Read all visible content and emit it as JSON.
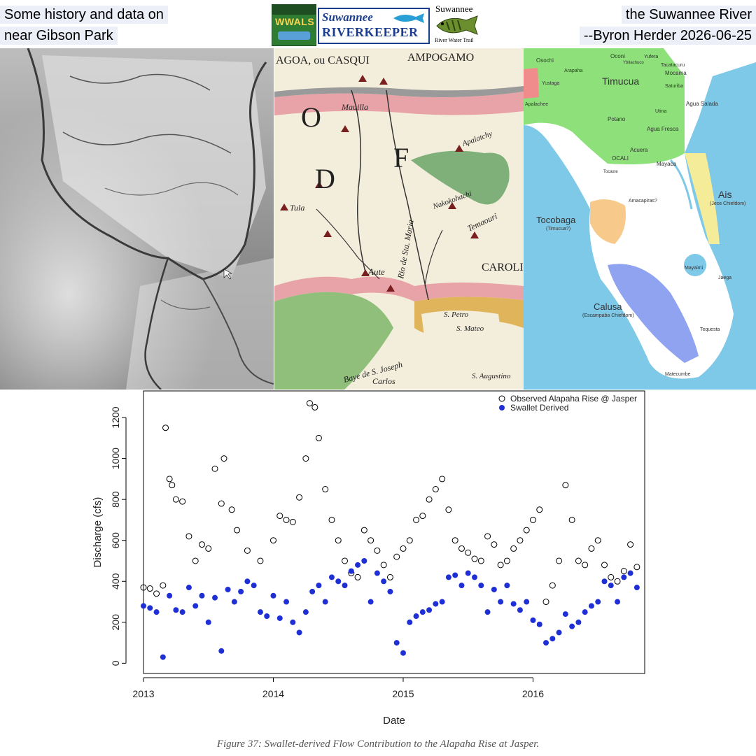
{
  "header": {
    "left_line1": "Some history and data on",
    "left_line2": "near Gibson Park",
    "right_line1": "the Suwannee River",
    "right_line2": "--Byron Herder 2026-06-25"
  },
  "logos": {
    "wwals": "WWALS",
    "riverkeeper_line1": "Suwannee",
    "riverkeeper_line2": "RIVERKEEPER",
    "trail_line1": "Suwannee",
    "trail_line2": "River Water Trail"
  },
  "old_map": {
    "labels": [
      "AGOA, ou CASQUI",
      "AMPOGAMO",
      "O",
      "F",
      "D",
      "Tula",
      "Aute",
      "Apalatchy",
      "Nakokohachi",
      "Temaouri",
      "CAROLIN",
      "Rio de Sta. Maria",
      "Baye de S. Joseph",
      "S. Petro",
      "S. Mateo",
      "S. Augustino",
      "Carlos",
      "Mauilla"
    ]
  },
  "tribes_map": {
    "labels": [
      "Osochi",
      "Oconi",
      "Yufera",
      "Timucua",
      "Tacatacuru",
      "Mocama",
      "Saturiba",
      "Agua Salada",
      "Utina",
      "Potano",
      "Agua Fresca",
      "Acuera",
      "OCALI",
      "Mayaca",
      "Ais",
      "(Jece Chiefdom)",
      "Tocobaga",
      "(Timucua?)",
      "Calusa",
      "(Escampaba Chiefdom)",
      "Mayaimi",
      "Jaega",
      "Tequesta",
      "Matecumbe",
      "Tocaste",
      "Amacapiras?",
      "Ybitachuco",
      "Yustaga",
      "Arapaha",
      "Apalachee"
    ]
  },
  "chart_data": {
    "type": "scatter",
    "title": "",
    "xlabel": "Date",
    "ylabel": "Discharge (cfs)",
    "x_ticks": [
      "2013",
      "2014",
      "2015",
      "2016"
    ],
    "y_ticks": [
      "0",
      "200",
      "400",
      "600",
      "800",
      "1000",
      "1200"
    ],
    "xlim": [
      2013.0,
      2016.86
    ],
    "ylim": [
      -50,
      1330
    ],
    "legend_position": "top-right",
    "caption": "Figure 37: Swallet-derived Flow Contribution to the Alapaha Rise at Jasper.",
    "series": [
      {
        "name": "Observed Alapaha Rise @ Jasper",
        "marker": "open-circle",
        "color": "#000000",
        "x": [
          2013.0,
          2013.05,
          2013.1,
          2013.15,
          2013.17,
          2013.2,
          2013.22,
          2013.25,
          2013.3,
          2013.35,
          2013.4,
          2013.45,
          2013.5,
          2013.55,
          2013.6,
          2013.62,
          2013.68,
          2013.72,
          2013.8,
          2013.9,
          2014.0,
          2014.05,
          2014.1,
          2014.15,
          2014.2,
          2014.25,
          2014.28,
          2014.32,
          2014.35,
          2014.4,
          2014.45,
          2014.5,
          2014.55,
          2014.6,
          2014.65,
          2014.7,
          2014.75,
          2014.8,
          2014.85,
          2014.9,
          2014.95,
          2015.0,
          2015.05,
          2015.1,
          2015.15,
          2015.2,
          2015.25,
          2015.3,
          2015.35,
          2015.4,
          2015.45,
          2015.5,
          2015.55,
          2015.6,
          2015.65,
          2015.7,
          2015.75,
          2015.8,
          2015.85,
          2015.9,
          2015.95,
          2016.0,
          2016.05,
          2016.1,
          2016.15,
          2016.2,
          2016.25,
          2016.3,
          2016.35,
          2016.4,
          2016.45,
          2016.5,
          2016.55,
          2016.6,
          2016.65,
          2016.7,
          2016.75,
          2016.8
        ],
        "y": [
          370,
          365,
          340,
          380,
          1150,
          900,
          870,
          800,
          790,
          620,
          500,
          580,
          560,
          950,
          780,
          1000,
          750,
          650,
          550,
          500,
          600,
          720,
          700,
          690,
          810,
          1000,
          1270,
          1250,
          1100,
          850,
          700,
          600,
          500,
          440,
          420,
          650,
          600,
          550,
          480,
          420,
          520,
          560,
          600,
          700,
          720,
          800,
          850,
          900,
          750,
          600,
          560,
          540,
          510,
          500,
          620,
          580,
          480,
          500,
          560,
          600,
          650,
          700,
          750,
          300,
          380,
          500,
          870,
          700,
          500,
          480,
          560,
          600,
          480,
          420,
          400,
          450,
          580,
          470
        ]
      },
      {
        "name": "Swallet Derived",
        "marker": "filled-circle",
        "color": "#1f2fd6",
        "x": [
          2013.0,
          2013.05,
          2013.1,
          2013.15,
          2013.2,
          2013.25,
          2013.3,
          2013.35,
          2013.4,
          2013.45,
          2013.5,
          2013.55,
          2013.6,
          2013.65,
          2013.7,
          2013.75,
          2013.8,
          2013.85,
          2013.9,
          2013.95,
          2014.0,
          2014.05,
          2014.1,
          2014.15,
          2014.2,
          2014.25,
          2014.3,
          2014.35,
          2014.4,
          2014.45,
          2014.5,
          2014.55,
          2014.6,
          2014.65,
          2014.7,
          2014.75,
          2014.8,
          2014.85,
          2014.9,
          2014.95,
          2015.0,
          2015.05,
          2015.1,
          2015.15,
          2015.2,
          2015.25,
          2015.3,
          2015.35,
          2015.4,
          2015.45,
          2015.5,
          2015.55,
          2015.6,
          2015.65,
          2015.7,
          2015.75,
          2015.8,
          2015.85,
          2015.9,
          2015.95,
          2016.0,
          2016.05,
          2016.1,
          2016.15,
          2016.2,
          2016.25,
          2016.3,
          2016.35,
          2016.4,
          2016.45,
          2016.5,
          2016.55,
          2016.6,
          2016.65,
          2016.7,
          2016.75,
          2016.8
        ],
        "y": [
          280,
          270,
          250,
          30,
          330,
          260,
          250,
          370,
          280,
          330,
          200,
          320,
          60,
          360,
          300,
          350,
          400,
          380,
          250,
          230,
          330,
          220,
          300,
          200,
          150,
          250,
          350,
          380,
          300,
          420,
          400,
          380,
          450,
          480,
          500,
          300,
          440,
          400,
          350,
          100,
          50,
          200,
          230,
          250,
          260,
          290,
          300,
          420,
          430,
          380,
          440,
          420,
          380,
          250,
          360,
          300,
          380,
          290,
          260,
          300,
          210,
          190,
          100,
          120,
          150,
          240,
          180,
          200,
          250,
          280,
          300,
          400,
          380,
          300,
          420,
          440,
          370
        ]
      }
    ]
  }
}
